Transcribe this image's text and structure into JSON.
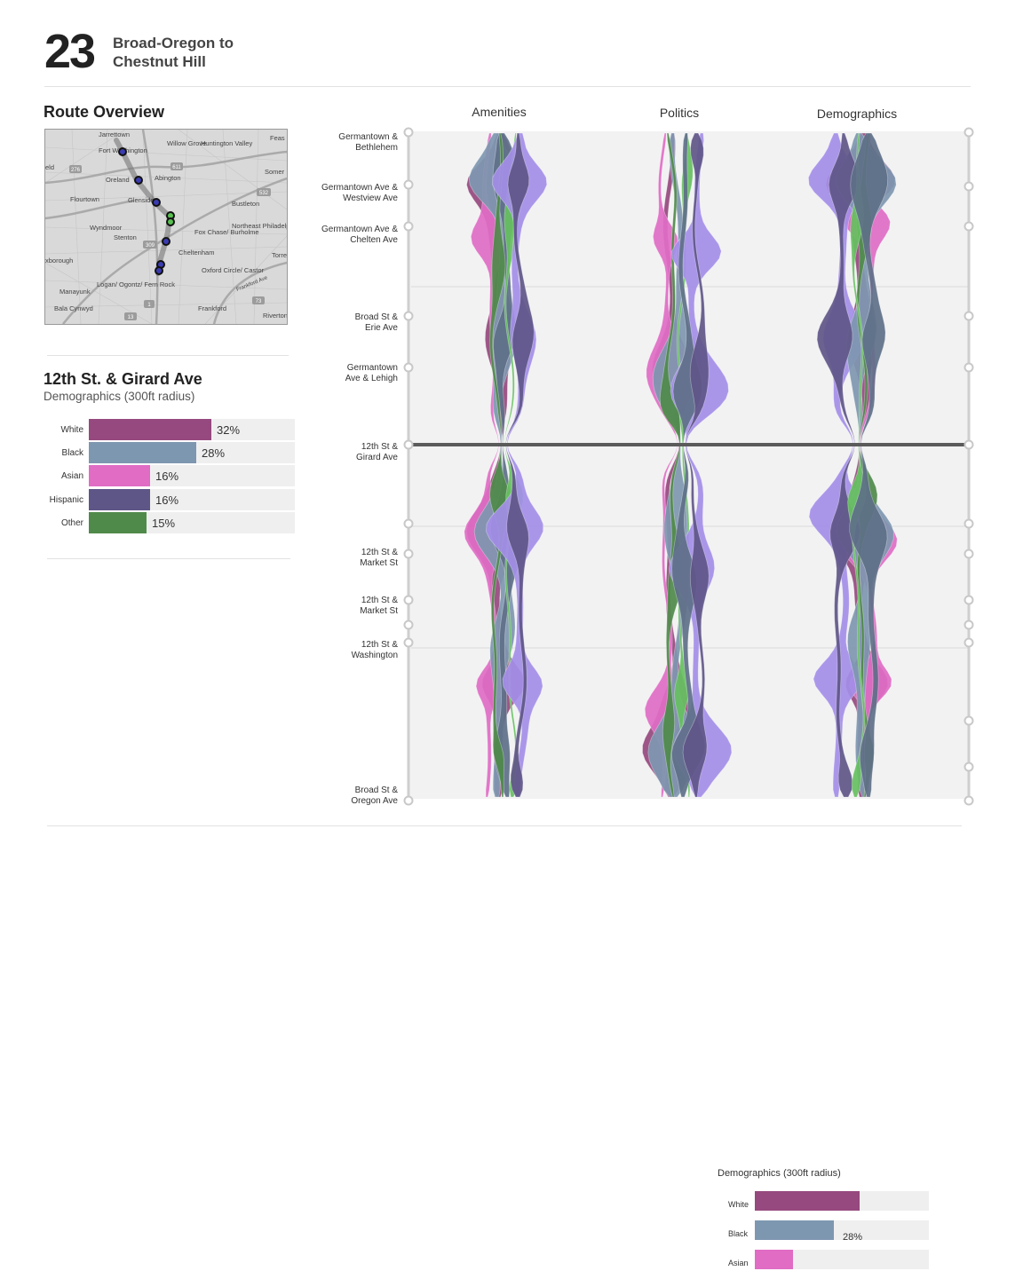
{
  "header": {
    "route_number": "23",
    "route_name_line1": "Broad-Oregon to",
    "route_name_line2": "Chestnut Hill"
  },
  "overview": {
    "title": "Route Overview",
    "map_labels": [
      "Jarrettown",
      "Fort Washington",
      "Willow Grove",
      "Huntington Valley",
      "Feas",
      "Oreland",
      "Abington",
      "Somer",
      "Flourtown",
      "Glenside",
      "Bustleton",
      "Wyndmoor",
      "Stenton",
      "Fox Chase/ Burholme",
      "Northeast Philadelphia Airport",
      "Torre",
      "Cheltenham",
      "Oxford Circle/ Castor",
      "Logan/ Ogontz/ Fern Rock",
      "Manayunk",
      "Bala Cynwyd",
      "Frankford",
      "Riverton",
      "xborough",
      "eld",
      "Frankford Ave"
    ],
    "road_shields": [
      "611",
      "276",
      "532",
      "309",
      "1",
      "13",
      "73"
    ]
  },
  "selected_stop": {
    "title": "12th St. & Girard Ave",
    "subtitle": "Demographics (300ft radius)",
    "bars": [
      {
        "label": "White",
        "value": 32,
        "pct": "32%",
        "color": "#96497e"
      },
      {
        "label": "Black",
        "value": 28,
        "pct": "28%",
        "color": "#7e97b0"
      },
      {
        "label": "Asian",
        "value": 16,
        "pct": "16%",
        "color": "#e06cc4"
      },
      {
        "label": "Hispanic",
        "value": 16,
        "pct": "16%",
        "color": "#5f5688"
      },
      {
        "label": "Other",
        "value": 15,
        "pct": "15%",
        "color": "#4f8a4a"
      }
    ]
  },
  "chart_data": {
    "type": "area",
    "columns": [
      "Amenities",
      "Politics",
      "Demographics"
    ],
    "stops": [
      {
        "label_line1": "Germantown &",
        "label_line2": "Bethlehem"
      },
      {
        "label_line1": "Germantown Ave &",
        "label_line2": "Westview Ave"
      },
      {
        "label_line1": "Germantown Ave &",
        "label_line2": "Chelten Ave"
      },
      {
        "label_line1": "Broad St &",
        "label_line2": "Erie Ave"
      },
      {
        "label_line1": "Germantown",
        "label_line2": "Ave & Lehigh"
      },
      {
        "label_line1": "12th St &",
        "label_line2": "Girard Ave"
      },
      {
        "label_line1": "12th St &",
        "label_line2": "Market St"
      },
      {
        "label_line1": "12th St &",
        "label_line2": "Market St"
      },
      {
        "label_line1": "12th St &",
        "label_line2": "Washington"
      },
      {
        "label_line1": "Broad St &",
        "label_line2": "Oregon Ave"
      }
    ],
    "selected_stop_index": 5,
    "series_colors": {
      "amenities": [
        "#96497e",
        "#e06cc4",
        "#7e97b0",
        "#4f8a4a",
        "#66c060",
        "#5f5688",
        "#a48ee8",
        "#5e7088"
      ],
      "politics": [
        "#96497e",
        "#e06cc4",
        "#7e97b0",
        "#4f8a4a",
        "#66c060",
        "#5f5688",
        "#a48ee8",
        "#5e7088"
      ],
      "demographics": [
        "#96497e",
        "#e06cc4",
        "#7e97b0",
        "#4f8a4a",
        "#66c060",
        "#5f5688",
        "#a48ee8",
        "#5e7088"
      ]
    }
  },
  "mini_panel": {
    "subtitle": "Demographics (300ft radius)",
    "bars": [
      {
        "label": "White",
        "value": 60,
        "pct": "",
        "color": "#96497e"
      },
      {
        "label": "Black",
        "value": 45,
        "pct": "28%",
        "color": "#7e97b0"
      },
      {
        "label": "Asian",
        "value": 22,
        "pct": "",
        "color": "#e06cc4"
      }
    ]
  }
}
